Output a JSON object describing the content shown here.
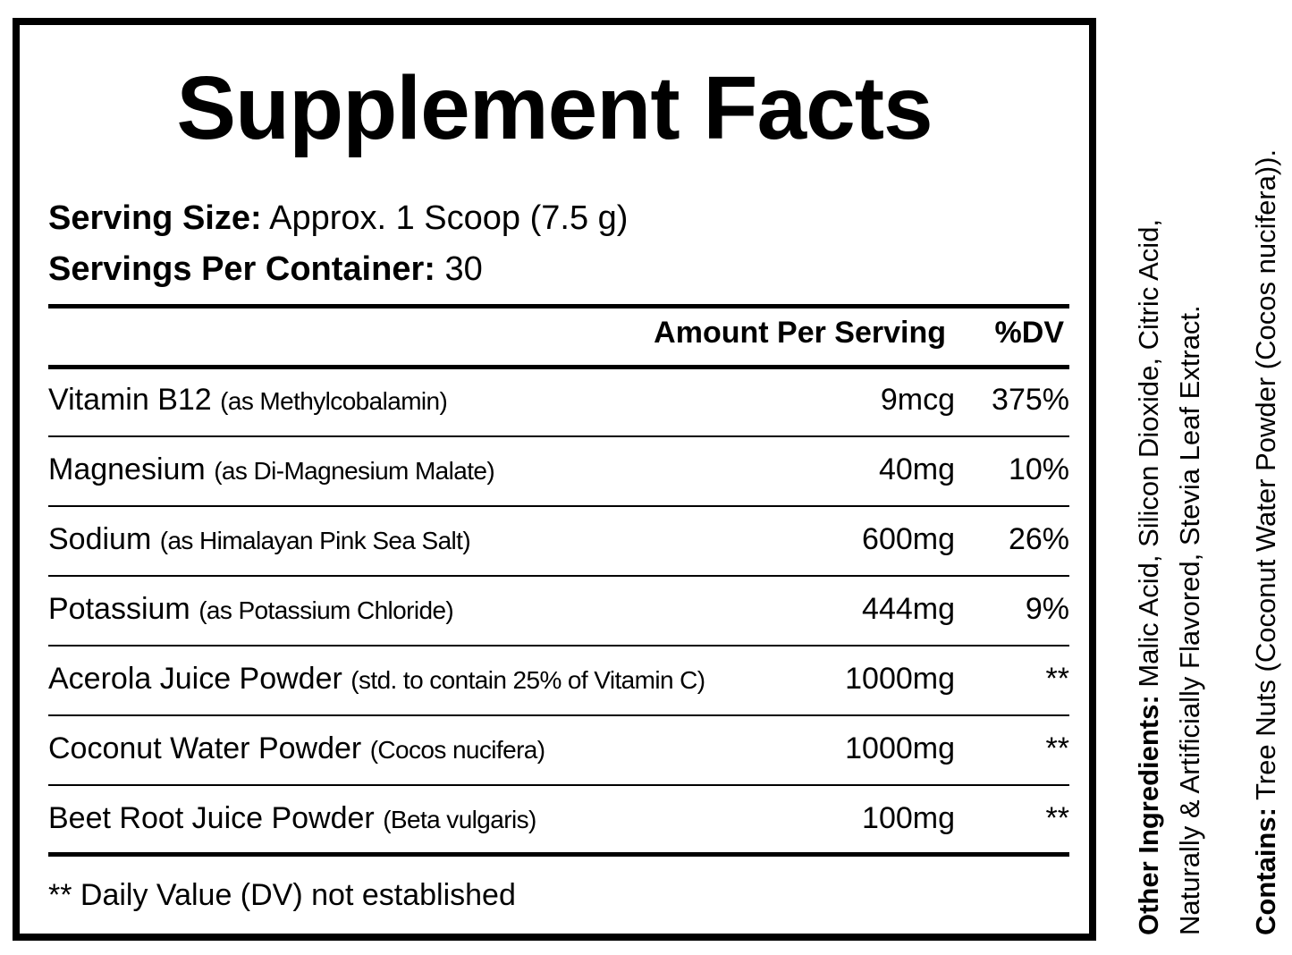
{
  "title": "Supplement Facts",
  "serving": {
    "size_label": "Serving Size:",
    "size_value": " Approx. 1 Scoop (7.5 g)",
    "per_container_label": "Servings Per Container:",
    "per_container_value": " 30"
  },
  "columns": {
    "amount": "Amount Per Serving",
    "dv": "%DV"
  },
  "rows": [
    {
      "name": "Vitamin B12 ",
      "detail": "(as Methylcobalamin)",
      "amount": "9mcg",
      "dv": "375%"
    },
    {
      "name": "Magnesium ",
      "detail": "(as Di-Magnesium Malate)",
      "amount": "40mg",
      "dv": "10%"
    },
    {
      "name": "Sodium ",
      "detail": "(as Himalayan Pink Sea Salt)",
      "amount": "600mg",
      "dv": "26%"
    },
    {
      "name": "Potassium ",
      "detail": "(as Potassium Chloride)",
      "amount": "444mg",
      "dv": "9%"
    },
    {
      "name": "Acerola Juice Powder ",
      "detail": "(std. to contain 25% of Vitamin C)",
      "amount": "1000mg",
      "dv": "**"
    },
    {
      "name": "Coconut Water Powder ",
      "detail": "(Cocos nucifera)",
      "amount": "1000mg",
      "dv": "**"
    },
    {
      "name": "Beet Root Juice Powder ",
      "detail": "(Beta vulgaris)",
      "amount": "100mg",
      "dv": "**"
    }
  ],
  "footnote": "** Daily Value (DV) not established",
  "other_ingredients": {
    "label": "Other Ingredients:",
    "line1": " Malic Acid, Silicon Dioxide, Citric Acid,",
    "line2": "Naturally & Artificially Flavored, Stevia Leaf Extract."
  },
  "contains": {
    "label": "Contains:",
    "value": " Tree Nuts (Coconut Water Powder (Cocos nucifera))."
  }
}
